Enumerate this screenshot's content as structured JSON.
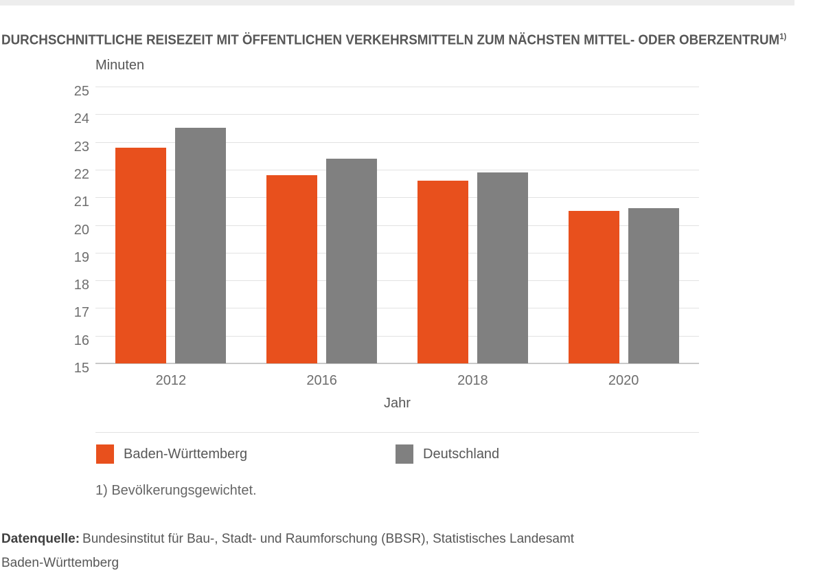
{
  "page": {
    "title": "DURCHSCHNITTLICHE REISEZEIT MIT ÖFFENTLICHEN VERKEHRSMITTELN ZUM NÄCHSTEN MITTEL- ODER OBERZENTRUM",
    "title_superscript": "1)",
    "footnote": "1) Bevölkerungsgewichtet.",
    "source_label": "Datenquelle:",
    "source_text": "Bundesinstitut für Bau-, Stadt- und Raumforschung (BBSR), Statistisches Landesamt",
    "source_text_line2": "Baden-Württemberg"
  },
  "chart_data": {
    "type": "bar",
    "title": "Durchschnittliche Reisezeit mit öffentlichen Verkehrsmitteln zum nächsten Mittel- oder Oberzentrum 1)",
    "unit_label": "Minuten",
    "xlabel": "Jahr",
    "categories": [
      "2012",
      "2016",
      "2018",
      "2020"
    ],
    "series": [
      {
        "name": "Baden-Württemberg",
        "color": "#E8501D",
        "values": [
          22.8,
          21.8,
          21.6,
          20.5
        ]
      },
      {
        "name": "Deutschland",
        "color": "#808080",
        "values": [
          23.5,
          22.4,
          21.9,
          20.6
        ]
      }
    ],
    "ylim": [
      15,
      25
    ],
    "ytick_step": 1,
    "grid": true,
    "legend_position": "bottom",
    "colors": {
      "grid": "#E2E2E2",
      "axis": "#C9C9C9",
      "text_dark": "#575757",
      "text_tick": "#6E6E6E",
      "top_strip": "#EDEDED"
    }
  }
}
